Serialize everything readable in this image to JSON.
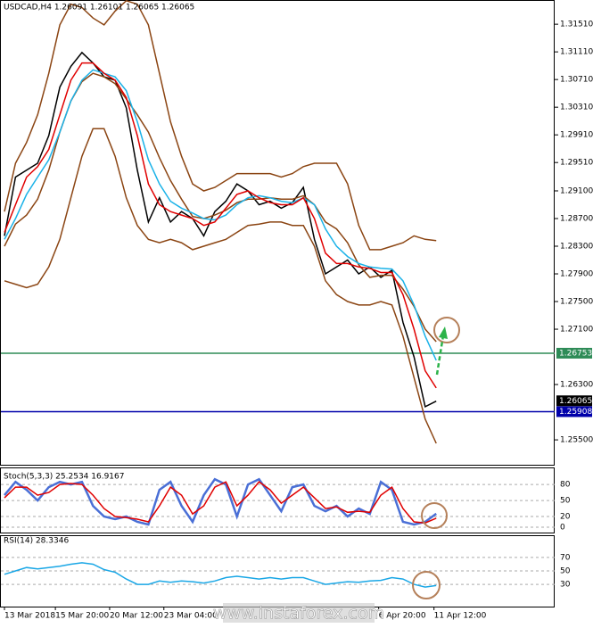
{
  "chart_data": [
    {
      "type": "line",
      "title": "USDCAD,H4  1.26091 1.26101 1.26065 1.26065",
      "ylim": [
        1.2514,
        1.3186
      ],
      "xlim": [
        0,
        49.7
      ],
      "yticks": [
        {
          "value": 1.3151,
          "label": "1.31510"
        },
        {
          "value": 1.3111,
          "label": "1.31110"
        },
        {
          "value": 1.3071,
          "label": "1.30710"
        },
        {
          "value": 1.3031,
          "label": "1.30310"
        },
        {
          "value": 1.2991,
          "label": "1.29910"
        },
        {
          "value": 1.2951,
          "label": "1.29510"
        },
        {
          "value": 1.291,
          "label": "1.29100"
        },
        {
          "value": 1.287,
          "label": "1.28700"
        },
        {
          "value": 1.283,
          "label": "1.28300"
        },
        {
          "value": 1.279,
          "label": "1.27900"
        },
        {
          "value": 1.275,
          "label": "1.27500"
        },
        {
          "value": 1.271,
          "label": "1.27100"
        },
        {
          "value": 1.263,
          "label": "1.26300"
        },
        {
          "value": 1.255,
          "label": "1.25500"
        }
      ],
      "levels": [
        {
          "value": 1.26753,
          "color": "#2e8b57"
        },
        {
          "value": 1.25908,
          "color": "#0000aa"
        }
      ],
      "last_price": 1.26065,
      "series": [
        {
          "color": "#000000",
          "values": [
            1.2845,
            1.293,
            1.294,
            1.295,
            1.299,
            1.306,
            1.309,
            1.311,
            1.3095,
            1.3075,
            1.307,
            1.303,
            1.294,
            1.2865,
            1.29,
            1.2865,
            1.288,
            1.287,
            1.2845,
            1.288,
            1.2895,
            1.292,
            1.291,
            1.289,
            1.2895,
            1.2885,
            1.2893,
            1.2915,
            1.284,
            1.279,
            1.28,
            1.281,
            1.279,
            1.28,
            1.2785,
            1.2795,
            1.272,
            1.267,
            1.2598,
            1.2606
          ]
        },
        {
          "color": "#8b4513",
          "values": [
            1.288,
            1.295,
            1.298,
            1.302,
            1.308,
            1.315,
            1.318,
            1.3175,
            1.316,
            1.315,
            1.317,
            1.3185,
            1.318,
            1.315,
            1.308,
            1.301,
            1.296,
            1.292,
            1.291,
            1.2915,
            1.2925,
            1.2935,
            1.2935,
            1.2935,
            1.2935,
            1.293,
            1.2935,
            1.2945,
            1.295,
            1.295,
            1.295,
            1.292,
            1.286,
            1.2825,
            1.2825,
            1.283,
            1.2835,
            1.2845,
            1.284,
            1.2838
          ]
        },
        {
          "color": "#8b4513",
          "values": [
            1.283,
            1.2862,
            1.2875,
            1.2898,
            1.294,
            1.2995,
            1.304,
            1.3068,
            1.308,
            1.3075,
            1.3065,
            1.3043,
            1.302,
            1.2995,
            1.2958,
            1.2925,
            1.2898,
            1.2873,
            1.287,
            1.2875,
            1.2882,
            1.2893,
            1.2898,
            1.2898,
            1.29,
            1.2898,
            1.2898,
            1.2903,
            1.289,
            1.2865,
            1.2855,
            1.2835,
            1.2803,
            1.2785,
            1.2788,
            1.2788,
            1.2768,
            1.2743,
            1.271,
            1.2692
          ]
        },
        {
          "color": "#8b4513",
          "values": [
            1.278,
            1.2775,
            1.277,
            1.2775,
            1.28,
            1.284,
            1.29,
            1.296,
            1.3,
            1.3,
            1.296,
            1.29,
            1.286,
            1.284,
            1.2835,
            1.284,
            1.2835,
            1.2825,
            1.283,
            1.2835,
            1.284,
            1.285,
            1.286,
            1.2862,
            1.2865,
            1.2865,
            1.286,
            1.286,
            1.283,
            1.278,
            1.276,
            1.275,
            1.2745,
            1.2745,
            1.275,
            1.2745,
            1.27,
            1.264,
            1.258,
            1.2545
          ]
        },
        {
          "color": "#1ab2e8",
          "values": [
            1.284,
            1.287,
            1.2905,
            1.293,
            1.2955,
            1.2995,
            1.304,
            1.307,
            1.3085,
            1.308,
            1.3075,
            1.3055,
            1.301,
            1.2955,
            1.292,
            1.2895,
            1.2885,
            1.2878,
            1.287,
            1.2868,
            1.2875,
            1.289,
            1.29,
            1.2903,
            1.29,
            1.2895,
            1.2893,
            1.29,
            1.289,
            1.2855,
            1.283,
            1.2815,
            1.2805,
            1.28,
            1.2798,
            1.2797,
            1.278,
            1.2745,
            1.27,
            1.2665
          ]
        },
        {
          "color": "#e00000",
          "values": [
            1.285,
            1.289,
            1.293,
            1.2945,
            1.297,
            1.302,
            1.307,
            1.3095,
            1.3095,
            1.308,
            1.307,
            1.3045,
            1.299,
            1.292,
            1.289,
            1.288,
            1.2875,
            1.287,
            1.286,
            1.2865,
            1.2885,
            1.2905,
            1.291,
            1.29,
            1.2893,
            1.289,
            1.289,
            1.29,
            1.287,
            1.282,
            1.2805,
            1.2805,
            1.28,
            1.2798,
            1.2792,
            1.2792,
            1.276,
            1.271,
            1.265,
            1.2625
          ]
        }
      ]
    },
    {
      "type": "line",
      "title": "Stoch(5,3,3) 25.2534 16.9167",
      "ylim": [
        -10,
        112
      ],
      "xlim": [
        0,
        49.7
      ],
      "yticks": [
        80,
        50,
        20,
        0
      ],
      "series": [
        {
          "color": "#4a6fd6",
          "values": [
            60,
            85,
            70,
            50,
            75,
            85,
            80,
            85,
            40,
            20,
            15,
            20,
            10,
            5,
            70,
            85,
            40,
            10,
            60,
            90,
            80,
            20,
            80,
            90,
            60,
            30,
            75,
            80,
            40,
            30,
            40,
            20,
            35,
            25,
            85,
            70,
            10,
            5,
            10,
            25.2534
          ]
        },
        {
          "color": "#e00000",
          "values": [
            55,
            75,
            75,
            60,
            65,
            80,
            82,
            80,
            60,
            35,
            20,
            18,
            15,
            10,
            40,
            75,
            60,
            25,
            40,
            75,
            85,
            40,
            60,
            85,
            70,
            45,
            60,
            75,
            55,
            35,
            38,
            28,
            30,
            28,
            60,
            75,
            35,
            10,
            8,
            16.9167
          ]
        }
      ]
    },
    {
      "type": "line",
      "title": "RSI(14) 28.3346",
      "ylim": [
        -3,
        103
      ],
      "xlim": [
        0,
        49.7
      ],
      "yticks": [
        70,
        50,
        30
      ],
      "xticks": [
        {
          "value": 0,
          "label": "13 Mar 2018"
        },
        {
          "value": 4.6,
          "label": "15 Mar 20:00"
        },
        {
          "value": 9.5,
          "label": "20 Mar 12:00"
        },
        {
          "value": 14.4,
          "label": "23 Mar 04:00"
        },
        {
          "value": 33.8,
          "label": "6 Apr 20:00"
        },
        {
          "value": 38.8,
          "label": "11 Apr 12:00"
        }
      ],
      "series": [
        {
          "color": "#1aa7e6",
          "values": [
            45,
            50,
            55,
            53,
            55,
            57,
            60,
            62,
            60,
            52,
            48,
            38,
            30,
            30,
            35,
            33,
            35,
            34,
            32,
            35,
            40,
            42,
            40,
            38,
            40,
            38,
            40,
            40,
            35,
            30,
            32,
            34,
            33,
            35,
            36,
            40,
            38,
            30,
            26,
            28.3346
          ]
        }
      ]
    }
  ],
  "watermark": "www.instaforex.com"
}
